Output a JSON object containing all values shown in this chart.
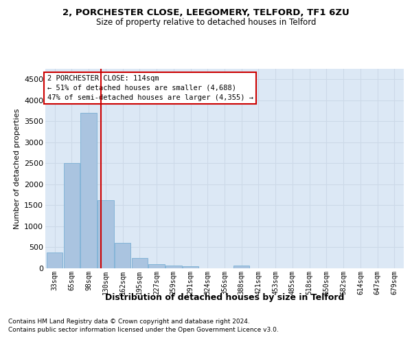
{
  "title1": "2, PORCHESTER CLOSE, LEEGOMERY, TELFORD, TF1 6ZU",
  "title2": "Size of property relative to detached houses in Telford",
  "xlabel": "Distribution of detached houses by size in Telford",
  "ylabel": "Number of detached properties",
  "categories": [
    "33sqm",
    "65sqm",
    "98sqm",
    "130sqm",
    "162sqm",
    "195sqm",
    "227sqm",
    "259sqm",
    "291sqm",
    "324sqm",
    "356sqm",
    "388sqm",
    "421sqm",
    "453sqm",
    "485sqm",
    "518sqm",
    "550sqm",
    "582sqm",
    "614sqm",
    "647sqm",
    "679sqm"
  ],
  "values": [
    375,
    2500,
    3700,
    1625,
    600,
    250,
    100,
    60,
    50,
    0,
    0,
    60,
    0,
    0,
    0,
    0,
    0,
    0,
    0,
    0,
    0
  ],
  "bar_color": "#aac4e0",
  "bar_edge_color": "#7aafd4",
  "red_line_x": 2.72,
  "ylim": [
    0,
    4750
  ],
  "yticks": [
    0,
    500,
    1000,
    1500,
    2000,
    2500,
    3000,
    3500,
    4000,
    4500
  ],
  "annotation_title": "2 PORCHESTER CLOSE: 114sqm",
  "annotation_line1": "← 51% of detached houses are smaller (4,688)",
  "annotation_line2": "47% of semi-detached houses are larger (4,355) →",
  "annotation_box_color": "#ffffff",
  "annotation_box_edge": "#cc0000",
  "footnote1": "Contains HM Land Registry data © Crown copyright and database right 2024.",
  "footnote2": "Contains public sector information licensed under the Open Government Licence v3.0.",
  "grid_color": "#ccd9e8",
  "background_color": "#dce8f5"
}
